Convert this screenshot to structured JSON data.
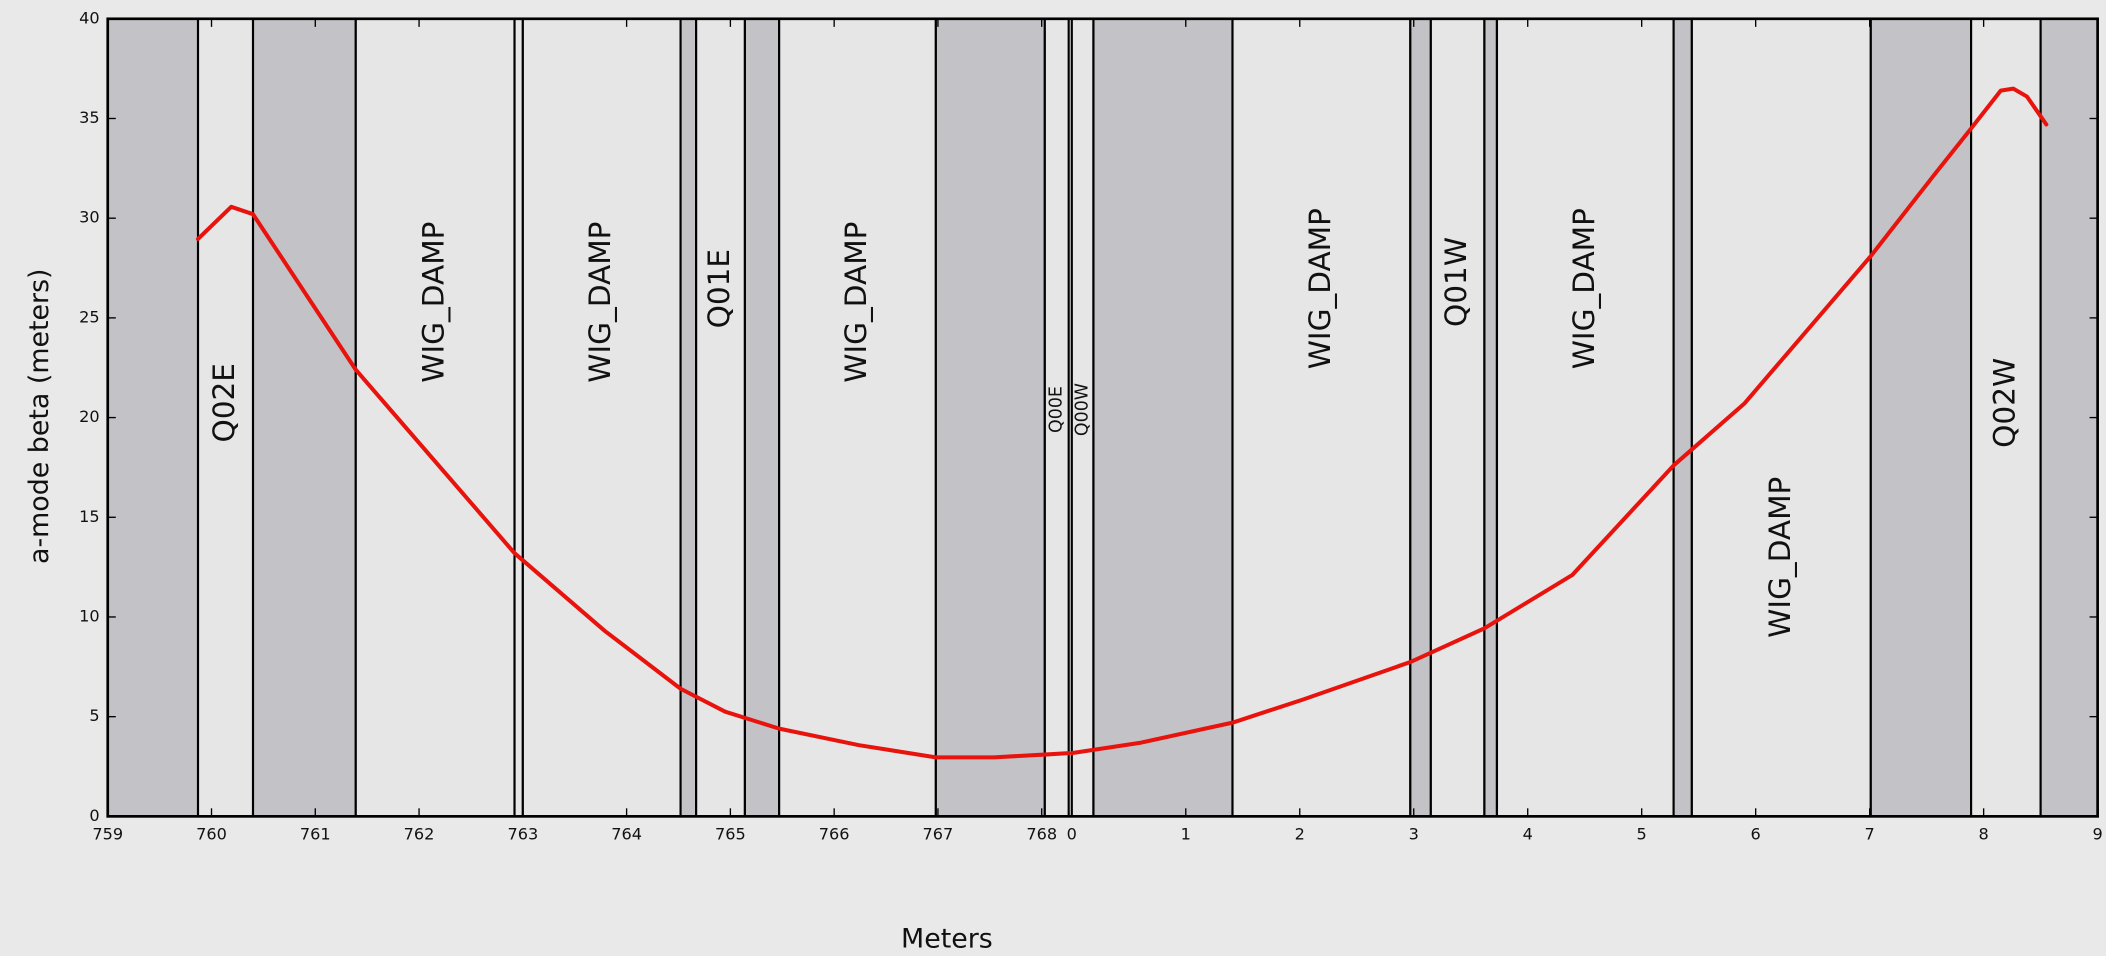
{
  "chart_data": {
    "type": "line",
    "ylabel": "a-mode beta (meters)",
    "xlabel": "Meters",
    "ylim": [
      0,
      40
    ],
    "yticks": [
      0,
      5,
      10,
      15,
      20,
      25,
      30,
      35,
      40
    ],
    "color": "#e8130d",
    "background_color": "#e6e6e6",
    "shade_color": "#c3c2c7",
    "panels": [
      {
        "xlim": [
          759,
          768.29
        ],
        "xticks": [
          759,
          760,
          761,
          762,
          763,
          764,
          765,
          766,
          767,
          768
        ],
        "elements": [
          {
            "start": 759,
            "end": 759.87,
            "shaded": true
          },
          {
            "start": 759.87,
            "end": 760.4,
            "shaded": false,
            "label": "Q02E"
          },
          {
            "start": 760.4,
            "end": 761.39,
            "shaded": true
          },
          {
            "start": 761.39,
            "end": 762.92,
            "shaded": false,
            "label": "WIG_DAMP"
          },
          {
            "start": 762.92,
            "end": 763.0,
            "shaded": false
          },
          {
            "start": 763.0,
            "end": 764.52,
            "shaded": false,
            "label": "WIG_DAMP"
          },
          {
            "start": 764.52,
            "end": 764.67,
            "shaded": true
          },
          {
            "start": 764.67,
            "end": 765.14,
            "shaded": false,
            "label": "Q01E"
          },
          {
            "start": 765.14,
            "end": 765.47,
            "shaded": true
          },
          {
            "start": 765.47,
            "end": 766.98,
            "shaded": false,
            "label": "WIG_DAMP"
          },
          {
            "start": 766.98,
            "end": 768.03,
            "shaded": true
          },
          {
            "start": 768.03,
            "end": 768.26,
            "shaded": false,
            "label": "Q00E"
          }
        ],
        "x": [
          759.87,
          760.19,
          760.4,
          761.39,
          762.92,
          763.79,
          764.52,
          764.95,
          765.47,
          766.24,
          766.98,
          767.54,
          768.03,
          768.26
        ],
        "values": [
          28.96,
          30.57,
          30.2,
          22.4,
          13.2,
          9.3,
          6.4,
          5.25,
          4.4,
          3.57,
          2.96,
          2.96,
          3.1,
          3.17
        ]
      },
      {
        "xlim": [
          0,
          9
        ],
        "xticks": [
          0,
          1,
          2,
          3,
          4,
          5,
          6,
          7,
          8,
          9
        ],
        "elements": [
          {
            "start": 0,
            "end": 0.19,
            "shaded": false,
            "label": "Q00W"
          },
          {
            "start": 0.19,
            "end": 1.41,
            "shaded": true
          },
          {
            "start": 1.41,
            "end": 2.97,
            "shaded": false,
            "label": "WIG_DAMP"
          },
          {
            "start": 2.97,
            "end": 3.15,
            "shaded": true
          },
          {
            "start": 3.15,
            "end": 3.62,
            "shaded": false,
            "label": "Q01W"
          },
          {
            "start": 3.62,
            "end": 3.73,
            "shaded": true
          },
          {
            "start": 3.73,
            "end": 5.28,
            "shaded": false,
            "label": "WIG_DAMP"
          },
          {
            "start": 5.28,
            "end": 5.44,
            "shaded": true
          },
          {
            "start": 5.44,
            "end": 7.01,
            "shaded": false,
            "label": "WIG_DAMP"
          },
          {
            "start": 7.01,
            "end": 7.89,
            "shaded": true
          },
          {
            "start": 7.89,
            "end": 8.5,
            "shaded": false,
            "label": "Q02W"
          },
          {
            "start": 8.5,
            "end": 9,
            "shaded": true
          }
        ],
        "x": [
          0,
          0.61,
          1.41,
          2.03,
          2.97,
          3.62,
          4.39,
          5.28,
          5.9,
          7.01,
          7.57,
          7.89,
          8.15,
          8.26,
          8.38,
          8.55
        ],
        "values": [
          3.17,
          3.7,
          4.7,
          5.86,
          7.74,
          9.43,
          12.1,
          17.6,
          20.7,
          28.1,
          32.2,
          34.5,
          36.4,
          36.5,
          36.1,
          34.7
        ]
      }
    ]
  }
}
